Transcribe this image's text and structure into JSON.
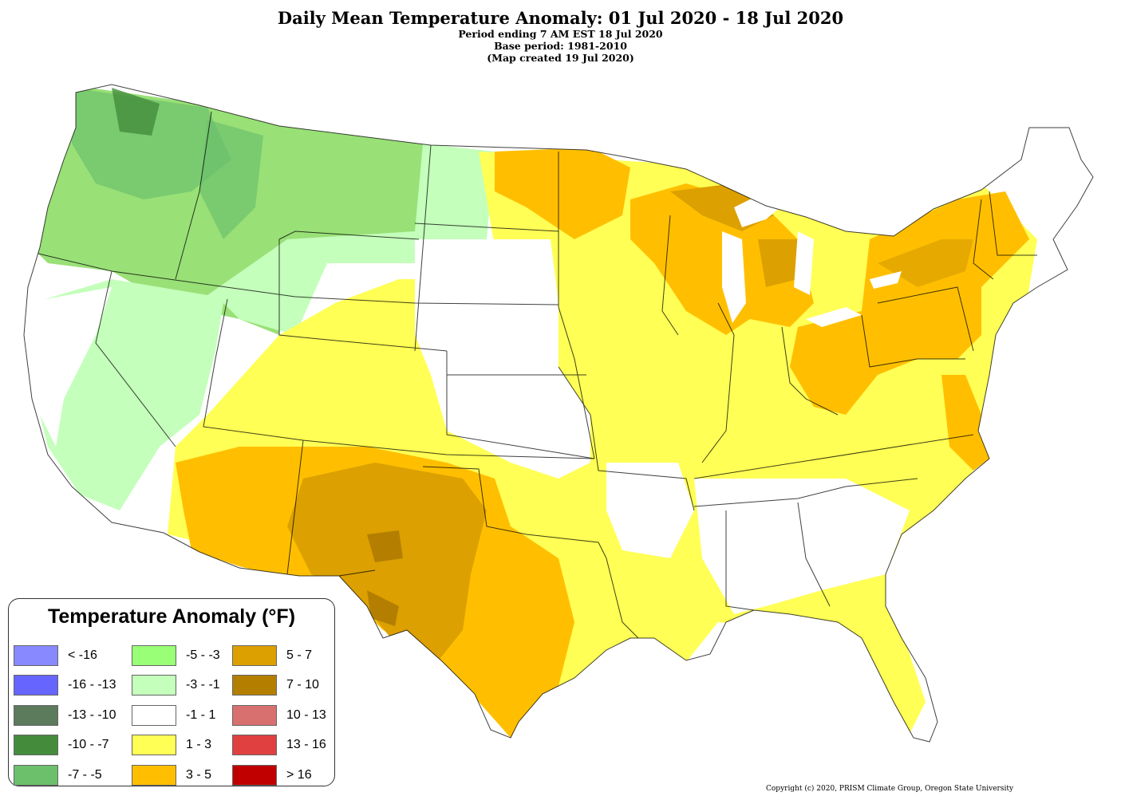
{
  "title": "Daily Mean Temperature Anomaly: 01 Jul 2020 - 18 Jul 2020",
  "subtitle_lines": [
    "Period ending 7 AM EST 18 Jul 2020",
    "Base period: 1981-2010",
    "(Map created 19 Jul 2020)"
  ],
  "legend": {
    "title": "Temperature Anomaly (°F)",
    "items": [
      {
        "label": "< -16",
        "color": "#8888ff"
      },
      {
        "label": "-16 - -13",
        "color": "#6666ff"
      },
      {
        "label": "-13 - -10",
        "color": "#5c7a5c"
      },
      {
        "label": "-10 - -7",
        "color": "#448c3c"
      },
      {
        "label": "-7 - -5",
        "color": "#6cc06c"
      },
      {
        "label": "-5 - -3",
        "color": "#99ff77"
      },
      {
        "label": "-3 - -1",
        "color": "#c4ffbb"
      },
      {
        "label": "-1 - 1",
        "color": "#ffffff"
      },
      {
        "label": "1 - 3",
        "color": "#ffff55"
      },
      {
        "label": "3 - 5",
        "color": "#ffbf00"
      },
      {
        "label": "5 - 7",
        "color": "#dca000"
      },
      {
        "label": "7 - 10",
        "color": "#b47f00"
      },
      {
        "label": "10 - 13",
        "color": "#d87070"
      },
      {
        "label": "13 - 16",
        "color": "#e04040"
      },
      {
        "label": "> 16",
        "color": "#c00000"
      }
    ]
  },
  "copyright": "Copyright (c) 2020, PRISM Climate Group, Oregon State University"
}
